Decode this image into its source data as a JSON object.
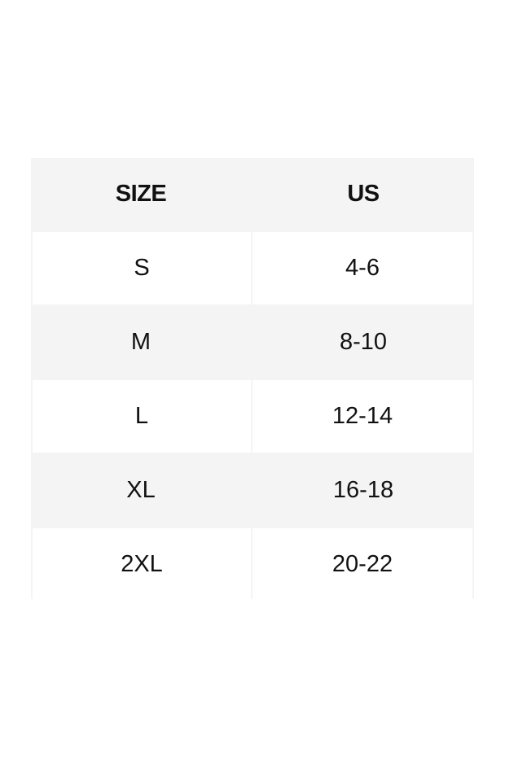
{
  "headers": [
    "SIZE",
    "US"
  ],
  "rows": [
    [
      "S",
      "4-6"
    ],
    [
      "M",
      "8-10"
    ],
    [
      "L",
      "12-14"
    ],
    [
      "XL",
      "16-18"
    ],
    [
      "2XL",
      "20-22"
    ]
  ],
  "colors": {
    "stripe": "#f4f4f4",
    "text": "#111111"
  }
}
